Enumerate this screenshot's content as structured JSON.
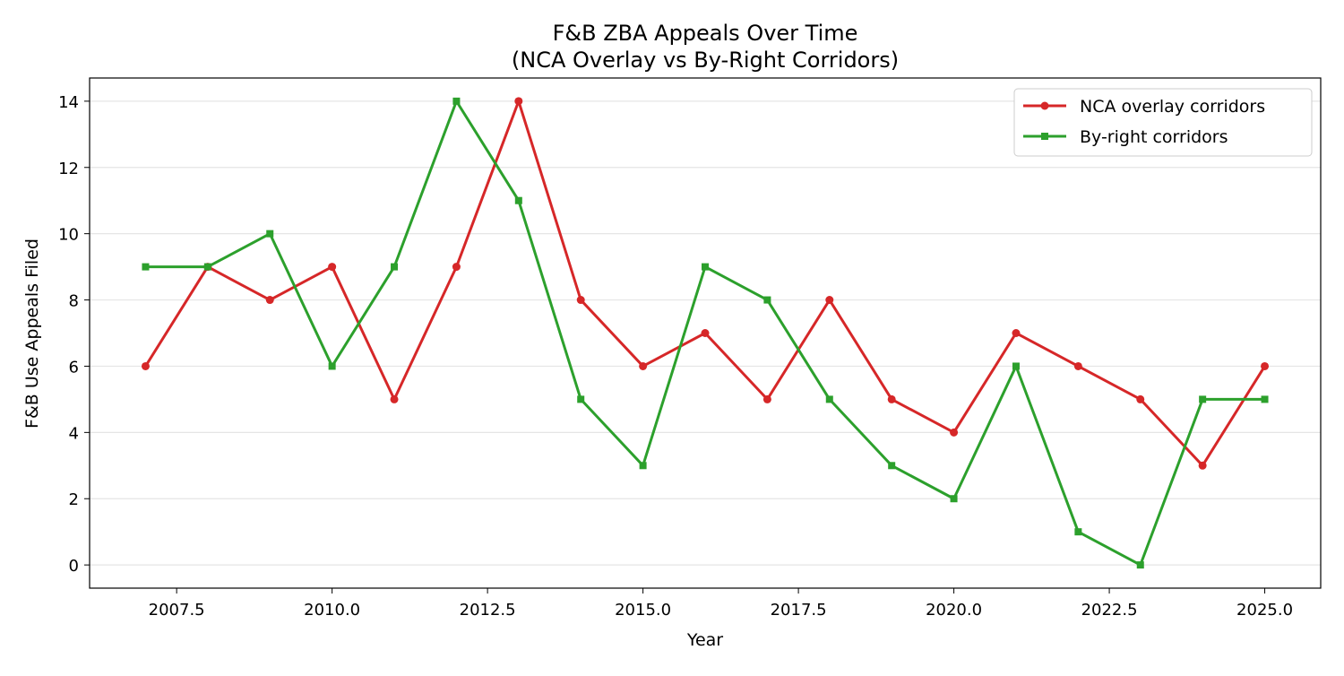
{
  "chart_data": {
    "type": "line",
    "title": "F&B ZBA Appeals Over Time",
    "subtitle": "(NCA Overlay vs By-Right Corridors)",
    "xlabel": "Year",
    "ylabel": "F&B Use Appeals Filed",
    "x": [
      2007,
      2008,
      2009,
      2010,
      2011,
      2012,
      2013,
      2014,
      2015,
      2016,
      2017,
      2018,
      2019,
      2020,
      2021,
      2022,
      2023,
      2024,
      2025
    ],
    "xlim": [
      2006.1,
      2025.9
    ],
    "ylim": [
      -0.7,
      14.7
    ],
    "xticks": [
      "2007.5",
      "2010.0",
      "2012.5",
      "2015.0",
      "2017.5",
      "2020.0",
      "2022.5",
      "2025.0"
    ],
    "yticks": [
      "0",
      "2",
      "4",
      "6",
      "8",
      "10",
      "12",
      "14"
    ],
    "grid": "horizontal",
    "legend_position": "top-right",
    "series": [
      {
        "name": "NCA overlay corridors",
        "color": "#d62728",
        "marker": "circle",
        "values": [
          6,
          9,
          8,
          9,
          5,
          9,
          14,
          8,
          6,
          7,
          5,
          8,
          5,
          4,
          7,
          6,
          5,
          3,
          6
        ]
      },
      {
        "name": "By-right corridors",
        "color": "#2ca02c",
        "marker": "square",
        "values": [
          9,
          9,
          10,
          6,
          9,
          14,
          11,
          5,
          3,
          9,
          8,
          5,
          3,
          2,
          6,
          1,
          0,
          5,
          5
        ]
      }
    ]
  }
}
